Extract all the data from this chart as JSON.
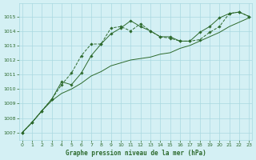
{
  "x": [
    0,
    1,
    2,
    3,
    4,
    5,
    6,
    7,
    8,
    9,
    10,
    11,
    12,
    13,
    14,
    15,
    16,
    17,
    18,
    19,
    20,
    21,
    22,
    23
  ],
  "line_dotted": [
    1007.0,
    1007.7,
    1008.5,
    1009.3,
    1010.3,
    1011.1,
    1012.3,
    1013.1,
    1013.1,
    1014.2,
    1014.3,
    1014.0,
    1014.5,
    1014.0,
    1013.6,
    1013.5,
    1013.3,
    1013.3,
    1013.4,
    1013.9,
    1014.3,
    1015.2,
    1015.3,
    1015.0
  ],
  "line_solid": [
    1007.0,
    1007.7,
    1008.5,
    1009.3,
    1010.5,
    1010.3,
    1011.1,
    1012.3,
    1013.1,
    1013.8,
    1014.2,
    1014.7,
    1014.3,
    1014.0,
    1013.6,
    1013.6,
    1013.3,
    1013.3,
    1013.9,
    1014.3,
    1014.9,
    1015.2,
    1015.3,
    1015.0
  ],
  "line_smooth": [
    1007.0,
    1007.7,
    1008.5,
    1009.2,
    1009.7,
    1010.0,
    1010.4,
    1010.9,
    1011.2,
    1011.6,
    1011.8,
    1012.0,
    1012.1,
    1012.2,
    1012.4,
    1012.5,
    1012.8,
    1013.0,
    1013.3,
    1013.6,
    1013.9,
    1014.3,
    1014.6,
    1014.9
  ],
  "bg_color": "#d4f0f4",
  "grid_color": "#aad8e0",
  "line_color": "#2d6a2d",
  "xlabel": "Graphe pression niveau de la mer (hPa)",
  "ylim": [
    1006.5,
    1015.9
  ],
  "yticks": [
    1007,
    1008,
    1009,
    1010,
    1011,
    1012,
    1013,
    1014,
    1015
  ],
  "xticks": [
    0,
    1,
    2,
    3,
    4,
    5,
    6,
    7,
    8,
    9,
    10,
    11,
    12,
    13,
    14,
    15,
    16,
    17,
    18,
    19,
    20,
    21,
    22,
    23
  ]
}
